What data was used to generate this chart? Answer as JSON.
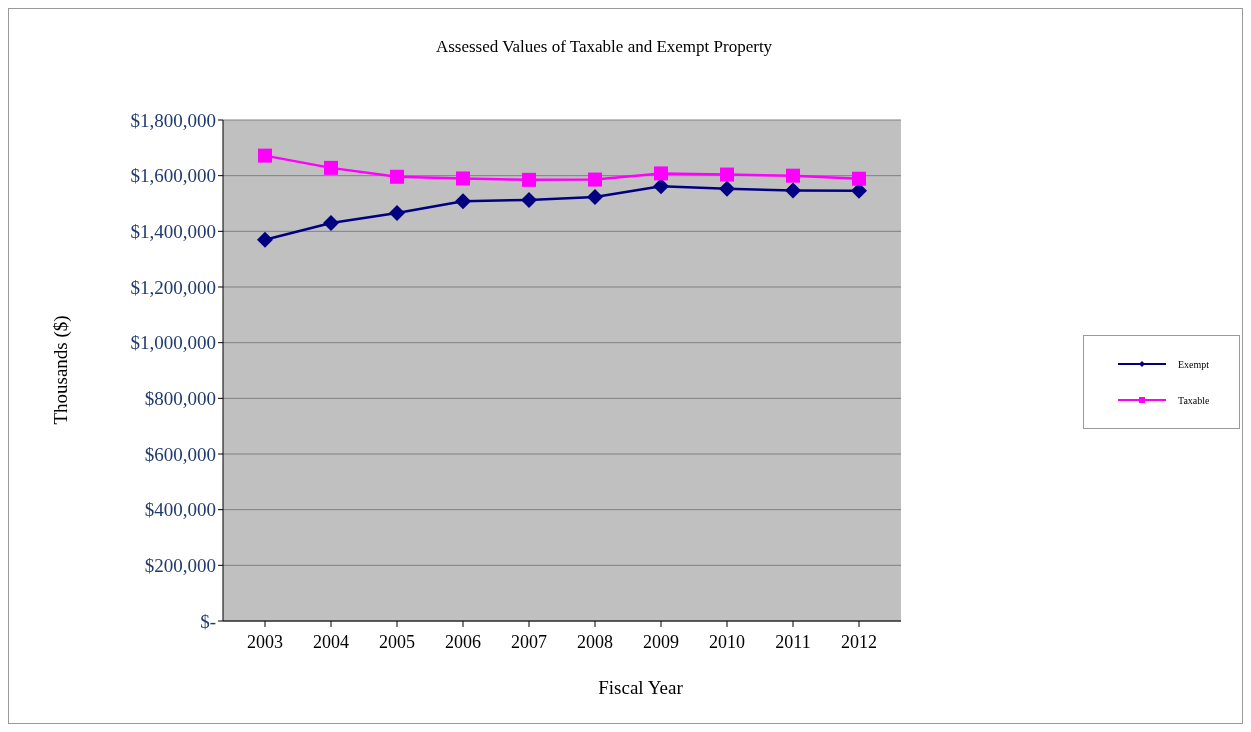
{
  "chart_data": {
    "type": "line",
    "title": "Assessed Values of Taxable and Exempt Property",
    "xlabel": "Fiscal Year",
    "ylabel": "Thousands ($)",
    "categories": [
      "2003",
      "2004",
      "2005",
      "2006",
      "2007",
      "2008",
      "2009",
      "2010",
      "2011",
      "2012"
    ],
    "series": [
      {
        "name": "Exempt",
        "color": "#000080",
        "marker": "diamond",
        "values": [
          1370000,
          1430000,
          1466000,
          1508000,
          1513000,
          1523000,
          1562000,
          1553000,
          1547000,
          1546000
        ]
      },
      {
        "name": "Taxable",
        "color": "#ff00ff",
        "marker": "square",
        "values": [
          1672000,
          1628000,
          1596000,
          1590000,
          1585000,
          1586000,
          1608000,
          1604000,
          1600000,
          1589000
        ]
      }
    ],
    "ylim": [
      0,
      1800000
    ],
    "yticks": [
      {
        "value": 0,
        "label": "$-"
      },
      {
        "value": 200000,
        "label": "$200,000"
      },
      {
        "value": 400000,
        "label": "$400,000"
      },
      {
        "value": 600000,
        "label": "$600,000"
      },
      {
        "value": 800000,
        "label": "$800,000"
      },
      {
        "value": 1000000,
        "label": "$1,000,000"
      },
      {
        "value": 1200000,
        "label": "$1,200,000"
      },
      {
        "value": 1400000,
        "label": "$1,400,000"
      },
      {
        "value": 1600000,
        "label": "$1,600,000"
      },
      {
        "value": 1800000,
        "label": "$1,800,000"
      }
    ],
    "grid": "y",
    "legend": "right",
    "line_style": "solid"
  }
}
